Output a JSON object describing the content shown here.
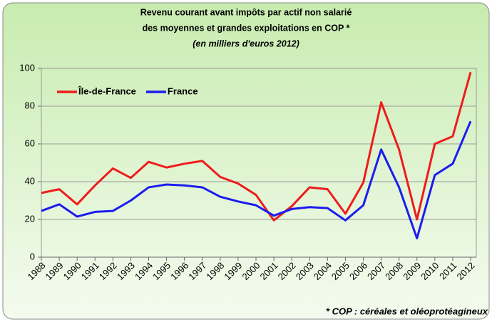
{
  "chart_data": {
    "type": "line",
    "title": [
      "Revenu courant avant impôts par actif non salarié",
      "des moyennes et grandes exploitations en COP *",
      "(en milliers d'euros 2012)"
    ],
    "footnote": "* COP : céréales et oléoprotéagineux",
    "categories": [
      "1988",
      "1989",
      "1990",
      "1991",
      "1992",
      "1993",
      "1994",
      "1995",
      "1996",
      "1997",
      "1998",
      "1999",
      "2000",
      "2001",
      "2002",
      "2003",
      "2004",
      "2005",
      "2006",
      "2007",
      "2008",
      "2009",
      "2010",
      "2011",
      "2012"
    ],
    "series": [
      {
        "name": "Île-de-France",
        "color": "#ee1c1c",
        "values": [
          34,
          36,
          28,
          38,
          47,
          42,
          50.5,
          47.5,
          49.5,
          51,
          42.5,
          39,
          33,
          19.5,
          27,
          37,
          36,
          23,
          39.5,
          82,
          57,
          20,
          60,
          64,
          98
        ]
      },
      {
        "name": "France",
        "color": "#1c1cee",
        "values": [
          24.5,
          28,
          21.5,
          24,
          24.5,
          30,
          37,
          38.5,
          38,
          37,
          32,
          29.5,
          27.5,
          22,
          25.5,
          26.5,
          26,
          19.5,
          27.5,
          57,
          37,
          10,
          43.5,
          49.5,
          72
        ]
      }
    ],
    "ylim": [
      0,
      100
    ],
    "yticks": [
      0,
      20,
      40,
      60,
      80,
      100
    ],
    "grid": true,
    "legend": "top-left"
  }
}
